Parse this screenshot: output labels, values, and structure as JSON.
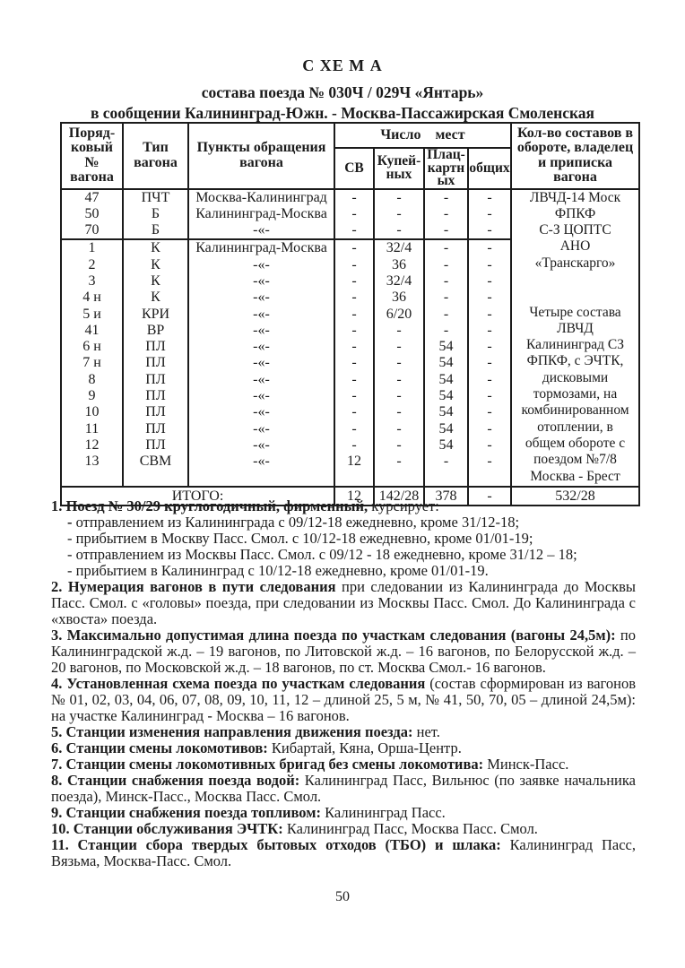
{
  "title": {
    "line1": "С ХЕ М А",
    "line2": "состава поезда № 030Ч / 029Ч «Янтарь»",
    "line3": "в сообщении Калининград-Южн. - Москва-Пассажирская Смоленская"
  },
  "table": {
    "headers": {
      "ordinal": "Поряд-\nковый\n№\nвагона",
      "type": "Тип\nвагона",
      "route": "Пункты обращения\nвагона",
      "seats": "Число мест",
      "sv": "СВ",
      "kupe": "Купей-\nных",
      "plats": "Плац-\nкартн\nых",
      "obshch": "общих",
      "fleet": "Кол-во составов в\nобороте, владелец\nи приписка\nвагона"
    },
    "rows": [
      {
        "cells": [
          "47",
          "ПЧТ",
          "Москва-Калининград",
          "-",
          "-",
          "-",
          "-"
        ],
        "group_end": false
      },
      {
        "cells": [
          "50",
          "Б",
          "Калининград-Москва",
          "-",
          "-",
          "-",
          "-"
        ],
        "group_end": false
      },
      {
        "cells": [
          "70",
          "Б",
          "-«-",
          "-",
          "-",
          "-",
          "-"
        ],
        "group_end": true
      },
      {
        "cells": [
          "1",
          "К",
          "Калининград-Москва",
          "-",
          "32/4",
          "-",
          "-"
        ],
        "group_end": false
      },
      {
        "cells": [
          "2",
          "К",
          "-«-",
          "-",
          "36",
          "-",
          "-"
        ],
        "group_end": false
      },
      {
        "cells": [
          "3",
          "К",
          "-«-",
          "-",
          "32/4",
          "-",
          "-"
        ],
        "group_end": false
      },
      {
        "cells": [
          "4 н",
          "К",
          "-«-",
          "-",
          "36",
          "-",
          "-"
        ],
        "group_end": false
      },
      {
        "cells": [
          "5 и",
          "КРИ",
          "-«-",
          "-",
          "6/20",
          "-",
          "-"
        ],
        "group_end": false
      },
      {
        "cells": [
          "41",
          "ВР",
          "-«-",
          "-",
          "-",
          "-",
          "-"
        ],
        "group_end": false
      },
      {
        "cells": [
          "6 н",
          "ПЛ",
          "-«-",
          "-",
          "-",
          "54",
          "-"
        ],
        "group_end": false
      },
      {
        "cells": [
          "7 н",
          "ПЛ",
          "-«-",
          "-",
          "-",
          "54",
          "-"
        ],
        "group_end": false
      },
      {
        "cells": [
          "8",
          "ПЛ",
          "-«-",
          "-",
          "-",
          "54",
          "-"
        ],
        "group_end": false
      },
      {
        "cells": [
          "9",
          "ПЛ",
          "-«-",
          "-",
          "-",
          "54",
          "-"
        ],
        "group_end": false
      },
      {
        "cells": [
          "10",
          "ПЛ",
          "-«-",
          "-",
          "-",
          "54",
          "-"
        ],
        "group_end": false
      },
      {
        "cells": [
          "11",
          "ПЛ",
          "-«-",
          "-",
          "-",
          "54",
          "-"
        ],
        "group_end": false
      },
      {
        "cells": [
          "12",
          "ПЛ",
          "-«-",
          "-",
          "-",
          "54",
          "-"
        ],
        "group_end": false
      },
      {
        "cells": [
          "13",
          "СВМ",
          "-«-",
          "12",
          "-",
          "-",
          "-"
        ],
        "group_end": false
      },
      {
        "cells": [
          "",
          "",
          "",
          "",
          "",
          "",
          ""
        ],
        "group_end": false
      }
    ],
    "fleet_lines": [
      "ЛВЧД-14 Моск",
      "ФПКФ",
      "С-З ЦОПТС",
      "АНО",
      "«Транскарго»",
      "",
      "",
      "Четыре состава",
      "ЛВЧД",
      "Калининград СЗ",
      "ФПКФ, с ЭЧТК,",
      "дисковыми",
      "тормозами, на",
      "комбинированном",
      "отоплении, в",
      "общем обороте с",
      "поездом №7/8",
      "Москва - Брест"
    ],
    "total": {
      "label": "ИТОГО:",
      "sv": "12",
      "kupe": "142/28",
      "plats": "378",
      "obshch": "-",
      "fleet": "532/28"
    }
  },
  "notes": [
    {
      "indent": 0,
      "segments": [
        {
          "b": 1,
          "t": "1. Поезд № 30/29 круглогодичный, фирменный, "
        },
        {
          "b": 0,
          "t": "курсирует:"
        }
      ]
    },
    {
      "indent": 1,
      "segments": [
        {
          "b": 1,
          "t": "- "
        },
        {
          "b": 0,
          "t": "отправлением из Калининграда с 09/12-18 ежедневно, кроме 31/12-18;"
        }
      ]
    },
    {
      "indent": 1,
      "segments": [
        {
          "b": 0,
          "t": "- прибытием в Москву Пасс. Смол. с 10/12-18 ежедневно, кроме 01/01-19;"
        }
      ]
    },
    {
      "indent": 1,
      "segments": [
        {
          "b": 0,
          "t": "- отправлением из Москвы Пасс. Смол. с 09/12 - 18 ежедневно, кроме 31/12 – 18;"
        }
      ]
    },
    {
      "indent": 1,
      "segments": [
        {
          "b": 0,
          "t": "- прибытием в Калининград с 10/12-18 ежедневно, кроме 01/01-19."
        }
      ]
    },
    {
      "indent": 0,
      "segments": [
        {
          "b": 1,
          "t": "2. Нумерация вагонов в пути следования "
        },
        {
          "b": 0,
          "t": " при следовании  из Калининграда до Москвы Пасс. Смол. с «головы» поезда, при следовании из Москвы Пасс. Смол. До Калининграда с «хвоста» поезда."
        }
      ]
    },
    {
      "indent": 0,
      "segments": [
        {
          "b": 1,
          "t": "3. Максимально допустимая длина поезда по участкам следования (вагоны 24,5м):"
        },
        {
          "b": 0,
          "t": " по Калининградской ж.д. – 19 вагонов, по Литовской ж.д. – 16 вагонов, по Белорусской ж.д. – 20 вагонов, по Московской ж.д. – 18 вагонов, по ст. Москва Смол.- 16 вагонов."
        }
      ]
    },
    {
      "indent": 0,
      "segments": [
        {
          "b": 1,
          "t": "4. Установленная схема поезда по участкам следования "
        },
        {
          "b": 0,
          "t": "(состав сформирован из вагонов № 01, 02, 03, 04, 06, 07, 08, 09, 10, 11, 12 – длиной 25, 5 м, № 41, 50, 70, 05 – длиной 24,5м): на участке Калининград - Москва – 16 вагонов."
        }
      ]
    },
    {
      "indent": 0,
      "segments": [
        {
          "b": 1,
          "t": "5. Станции изменения направления движения поезда:"
        },
        {
          "b": 0,
          "t": " нет."
        }
      ]
    },
    {
      "indent": 0,
      "segments": [
        {
          "b": 1,
          "t": "6. Станции смены  локомотивов:"
        },
        {
          "b": 0,
          "t": " Кибартай, Кяна, Орша-Центр."
        }
      ]
    },
    {
      "indent": 0,
      "segments": [
        {
          "b": 1,
          "t": "7. Станции смены  локомотивных бригад без смены локомотива:"
        },
        {
          "b": 0,
          "t": " Минск-Пасс."
        }
      ]
    },
    {
      "indent": 0,
      "segments": [
        {
          "b": 1,
          "t": "8. Станции снабжения поезда водой:"
        },
        {
          "b": 0,
          "t": " Калининград Пасс, Вильнюс (по заявке начальника поезда), Минск-Пасс., Москва Пасс. Смол."
        }
      ]
    },
    {
      "indent": 0,
      "segments": [
        {
          "b": 1,
          "t": "9. Станции снабжения поезда топливом:"
        },
        {
          "b": 0,
          "t": " Калининград Пасс."
        }
      ]
    },
    {
      "indent": 0,
      "segments": [
        {
          "b": 1,
          "t": "10. Станции обслуживания ЭЧТК:"
        },
        {
          "b": 0,
          "t": " Калининград Пасс, Москва Пасс. Смол."
        }
      ]
    },
    {
      "indent": 0,
      "segments": [
        {
          "b": 1,
          "t": "11. Станции сбора твердых бытовых отходов (ТБО) и шлака:"
        },
        {
          "b": 0,
          "t": " Калининград Пасс, Вязьма, Москва-Пасс. Смол."
        }
      ]
    }
  ],
  "page_number": "50"
}
